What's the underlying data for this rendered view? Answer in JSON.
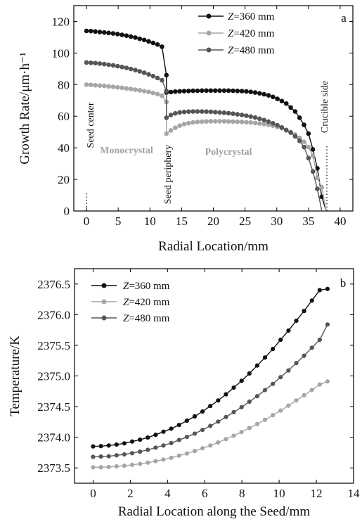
{
  "colors": {
    "z360": "#111111",
    "z420": "#a6a6a6",
    "z480": "#555555"
  },
  "chart_data": [
    {
      "panel": "a",
      "type": "line",
      "xlabel": "Radial Location/mm",
      "ylabel": "Growth Rate/μm·h⁻¹",
      "xlim": [
        -2,
        42
      ],
      "ylim": [
        0,
        130
      ],
      "xticks": [
        0,
        5,
        10,
        15,
        20,
        25,
        30,
        35,
        40
      ],
      "yticks": [
        0,
        20,
        40,
        60,
        80,
        100,
        120
      ],
      "legend_position": "top-right",
      "annotations": [
        "Seed center",
        "Monocrystal",
        "Seed periphery",
        "Polycrystal",
        "Crucible side"
      ],
      "series": [
        {
          "name": "Z=360 mm",
          "z_prefix": "Z",
          "z_suffix": "=360 mm",
          "color_key": "z360",
          "x": [
            0,
            0.7,
            1.4,
            2.1,
            2.8,
            3.5,
            4.2,
            4.9,
            5.6,
            6.3,
            7.0,
            7.7,
            8.4,
            9.1,
            9.8,
            10.5,
            11.2,
            11.9,
            12.6,
            12.6,
            13.3,
            14.0,
            14.7,
            15.4,
            16.1,
            16.8,
            17.5,
            18.2,
            18.9,
            19.6,
            20.3,
            21.0,
            21.7,
            22.4,
            23.1,
            23.8,
            24.5,
            25.2,
            25.9,
            26.6,
            27.3,
            28.0,
            28.7,
            29.4,
            30.1,
            30.8,
            31.5,
            32.2,
            32.9,
            33.6,
            34.3,
            35.0,
            35.7,
            36.4,
            37.1,
            37.8
          ],
          "y": [
            114,
            113.9,
            113.6,
            113.3,
            113,
            112.7,
            112.4,
            112,
            111.5,
            111,
            110.4,
            109.8,
            109,
            108.3,
            107.4,
            106.4,
            105.4,
            104,
            86,
            75,
            75.3,
            75.6,
            75.8,
            75.9,
            76,
            76.1,
            76.1,
            76.2,
            76.2,
            76.2,
            76.2,
            76.2,
            76.2,
            76.2,
            76.1,
            76,
            75.9,
            75.7,
            75.4,
            75,
            74.5,
            73.9,
            73.2,
            72.2,
            71,
            69.6,
            68,
            65.5,
            63,
            59,
            54.5,
            49,
            39,
            27,
            9,
            0
          ]
        },
        {
          "name": "Z=420 mm",
          "z_prefix": "Z",
          "z_suffix": "=420 mm",
          "color_key": "z420",
          "x": [
            0,
            0.7,
            1.4,
            2.1,
            2.8,
            3.5,
            4.2,
            4.9,
            5.6,
            6.3,
            7.0,
            7.7,
            8.4,
            9.1,
            9.8,
            10.5,
            11.2,
            11.9,
            12.6,
            12.6,
            13.3,
            14.0,
            14.7,
            15.4,
            16.1,
            16.8,
            17.5,
            18.2,
            18.9,
            19.6,
            20.3,
            21.0,
            21.7,
            22.4,
            23.1,
            23.8,
            24.5,
            25.2,
            25.9,
            26.6,
            27.3,
            28.0,
            28.7,
            29.4,
            30.1,
            30.8,
            31.5,
            32.2,
            32.9,
            33.6,
            34.3,
            35.0,
            35.7,
            36.4,
            37.1,
            37.8
          ],
          "y": [
            80,
            79.8,
            79.6,
            79.4,
            79.2,
            78.9,
            78.6,
            78.3,
            78,
            77.6,
            77.2,
            76.8,
            76.4,
            75.9,
            75.4,
            74.7,
            74,
            73,
            69,
            49,
            51,
            52.7,
            54,
            55,
            55.6,
            56.1,
            56.4,
            56.6,
            56.7,
            56.8,
            56.8,
            56.8,
            56.8,
            56.7,
            56.6,
            56.5,
            56.4,
            56.2,
            56,
            55.7,
            55.4,
            55,
            54.6,
            54,
            53.2,
            52.4,
            51,
            50,
            48.4,
            46.3,
            43.8,
            40.5,
            35,
            21,
            15,
            0
          ]
        },
        {
          "name": "Z=480 mm",
          "z_prefix": "Z",
          "z_suffix": "=480 mm",
          "color_key": "z480",
          "x": [
            0,
            0.7,
            1.4,
            2.1,
            2.8,
            3.5,
            4.2,
            4.9,
            5.6,
            6.3,
            7.0,
            7.7,
            8.4,
            9.1,
            9.8,
            10.5,
            11.2,
            11.9,
            12.6,
            12.6,
            13.3,
            14.0,
            14.7,
            15.4,
            16.1,
            16.8,
            17.5,
            18.2,
            18.9,
            19.6,
            20.3,
            21.0,
            21.7,
            22.4,
            23.1,
            23.8,
            24.5,
            25.2,
            25.9,
            26.6,
            27.3,
            28.0,
            28.7,
            29.4,
            30.1,
            30.8,
            31.5,
            32.2,
            32.9,
            33.6,
            34.3,
            35.0,
            35.7,
            36.4,
            37.1
          ],
          "y": [
            94,
            93.8,
            93.6,
            93.3,
            93,
            92.6,
            92.2,
            91.7,
            91.2,
            90.6,
            89.9,
            89.2,
            88.4,
            87.5,
            86.5,
            85.4,
            84.2,
            82.8,
            76,
            59,
            60.8,
            61.8,
            62.4,
            62.7,
            62.9,
            63,
            63,
            63,
            62.9,
            62.8,
            62.6,
            62.4,
            62.2,
            61.9,
            61.6,
            61.2,
            60.8,
            60.3,
            59.8,
            59.2,
            58.4,
            57.6,
            56.6,
            55.5,
            54.3,
            52.9,
            51.3,
            49.6,
            47.3,
            44.4,
            40.5,
            33.5,
            25,
            14,
            0
          ]
        }
      ]
    },
    {
      "panel": "b",
      "type": "line",
      "xlabel": "Radial Location along the Seed/mm",
      "ylabel": "Temperature/K",
      "xlim": [
        -1,
        14
      ],
      "ylim": [
        2373.25,
        2376.75
      ],
      "xticks": [
        0,
        2,
        4,
        6,
        8,
        10,
        12,
        14
      ],
      "yticks": [
        2373.5,
        2374.0,
        2374.5,
        2375.0,
        2375.5,
        2376.0,
        2376.5
      ],
      "ytick_labels": [
        "2373.5",
        "2374.0",
        "2374.5",
        "2375.0",
        "2375.5",
        "2376.0",
        "2376.5"
      ],
      "legend_position": "top-left",
      "series": [
        {
          "name": "Z=360 mm",
          "z_prefix": "Z",
          "z_suffix": "=360 mm",
          "color_key": "z360",
          "x": [
            0,
            0.42,
            0.84,
            1.26,
            1.68,
            2.1,
            2.52,
            2.94,
            3.36,
            3.78,
            4.2,
            4.62,
            5.04,
            5.46,
            5.88,
            6.3,
            6.72,
            7.14,
            7.56,
            7.98,
            8.4,
            8.82,
            9.24,
            9.66,
            10.08,
            10.5,
            10.92,
            11.34,
            11.76,
            12.18,
            12.6
          ],
          "y": [
            2373.85,
            2373.855,
            2373.865,
            2373.88,
            2373.9,
            2373.93,
            2373.96,
            2373.995,
            2374.04,
            2374.09,
            2374.14,
            2374.2,
            2374.27,
            2374.34,
            2374.42,
            2374.51,
            2374.6,
            2374.7,
            2374.81,
            2374.92,
            2375.04,
            2375.17,
            2375.3,
            2375.44,
            2375.59,
            2375.74,
            2375.9,
            2376.06,
            2376.23,
            2376.4,
            2376.42
          ]
        },
        {
          "name": "Z=420 mm",
          "z_prefix": "Z",
          "z_suffix": "=420 mm",
          "color_key": "z420",
          "x": [
            0,
            0.42,
            0.84,
            1.26,
            1.68,
            2.1,
            2.52,
            2.94,
            3.36,
            3.78,
            4.2,
            4.62,
            5.04,
            5.46,
            5.88,
            6.3,
            6.72,
            7.14,
            7.56,
            7.98,
            8.4,
            8.82,
            9.24,
            9.66,
            10.08,
            10.5,
            10.92,
            11.34,
            11.76,
            12.18,
            12.6
          ],
          "y": [
            2373.51,
            2373.51,
            2373.515,
            2373.525,
            2373.535,
            2373.55,
            2373.565,
            2373.585,
            2373.61,
            2373.635,
            2373.665,
            2373.7,
            2373.735,
            2373.775,
            2373.82,
            2373.865,
            2373.915,
            2373.97,
            2374.025,
            2374.085,
            2374.15,
            2374.215,
            2374.285,
            2374.36,
            2374.435,
            2374.515,
            2374.6,
            2374.685,
            2374.77,
            2374.86,
            2374.91
          ]
        },
        {
          "name": "Z=480 mm",
          "z_prefix": "Z",
          "z_suffix": "=480 mm",
          "color_key": "z480",
          "x": [
            0,
            0.42,
            0.84,
            1.26,
            1.68,
            2.1,
            2.52,
            2.94,
            3.36,
            3.78,
            4.2,
            4.62,
            5.04,
            5.46,
            5.88,
            6.3,
            6.72,
            7.14,
            7.56,
            7.98,
            8.4,
            8.82,
            9.24,
            9.66,
            10.08,
            10.5,
            10.92,
            11.34,
            11.76,
            12.18,
            12.6
          ],
          "y": [
            2373.68,
            2373.685,
            2373.69,
            2373.705,
            2373.72,
            2373.74,
            2373.765,
            2373.795,
            2373.83,
            2373.865,
            2373.905,
            2373.955,
            2374.005,
            2374.06,
            2374.12,
            2374.185,
            2374.255,
            2374.33,
            2374.41,
            2374.49,
            2374.58,
            2374.67,
            2374.77,
            2374.87,
            2374.98,
            2375.09,
            2375.21,
            2375.33,
            2375.46,
            2375.59,
            2375.84
          ]
        }
      ]
    }
  ]
}
